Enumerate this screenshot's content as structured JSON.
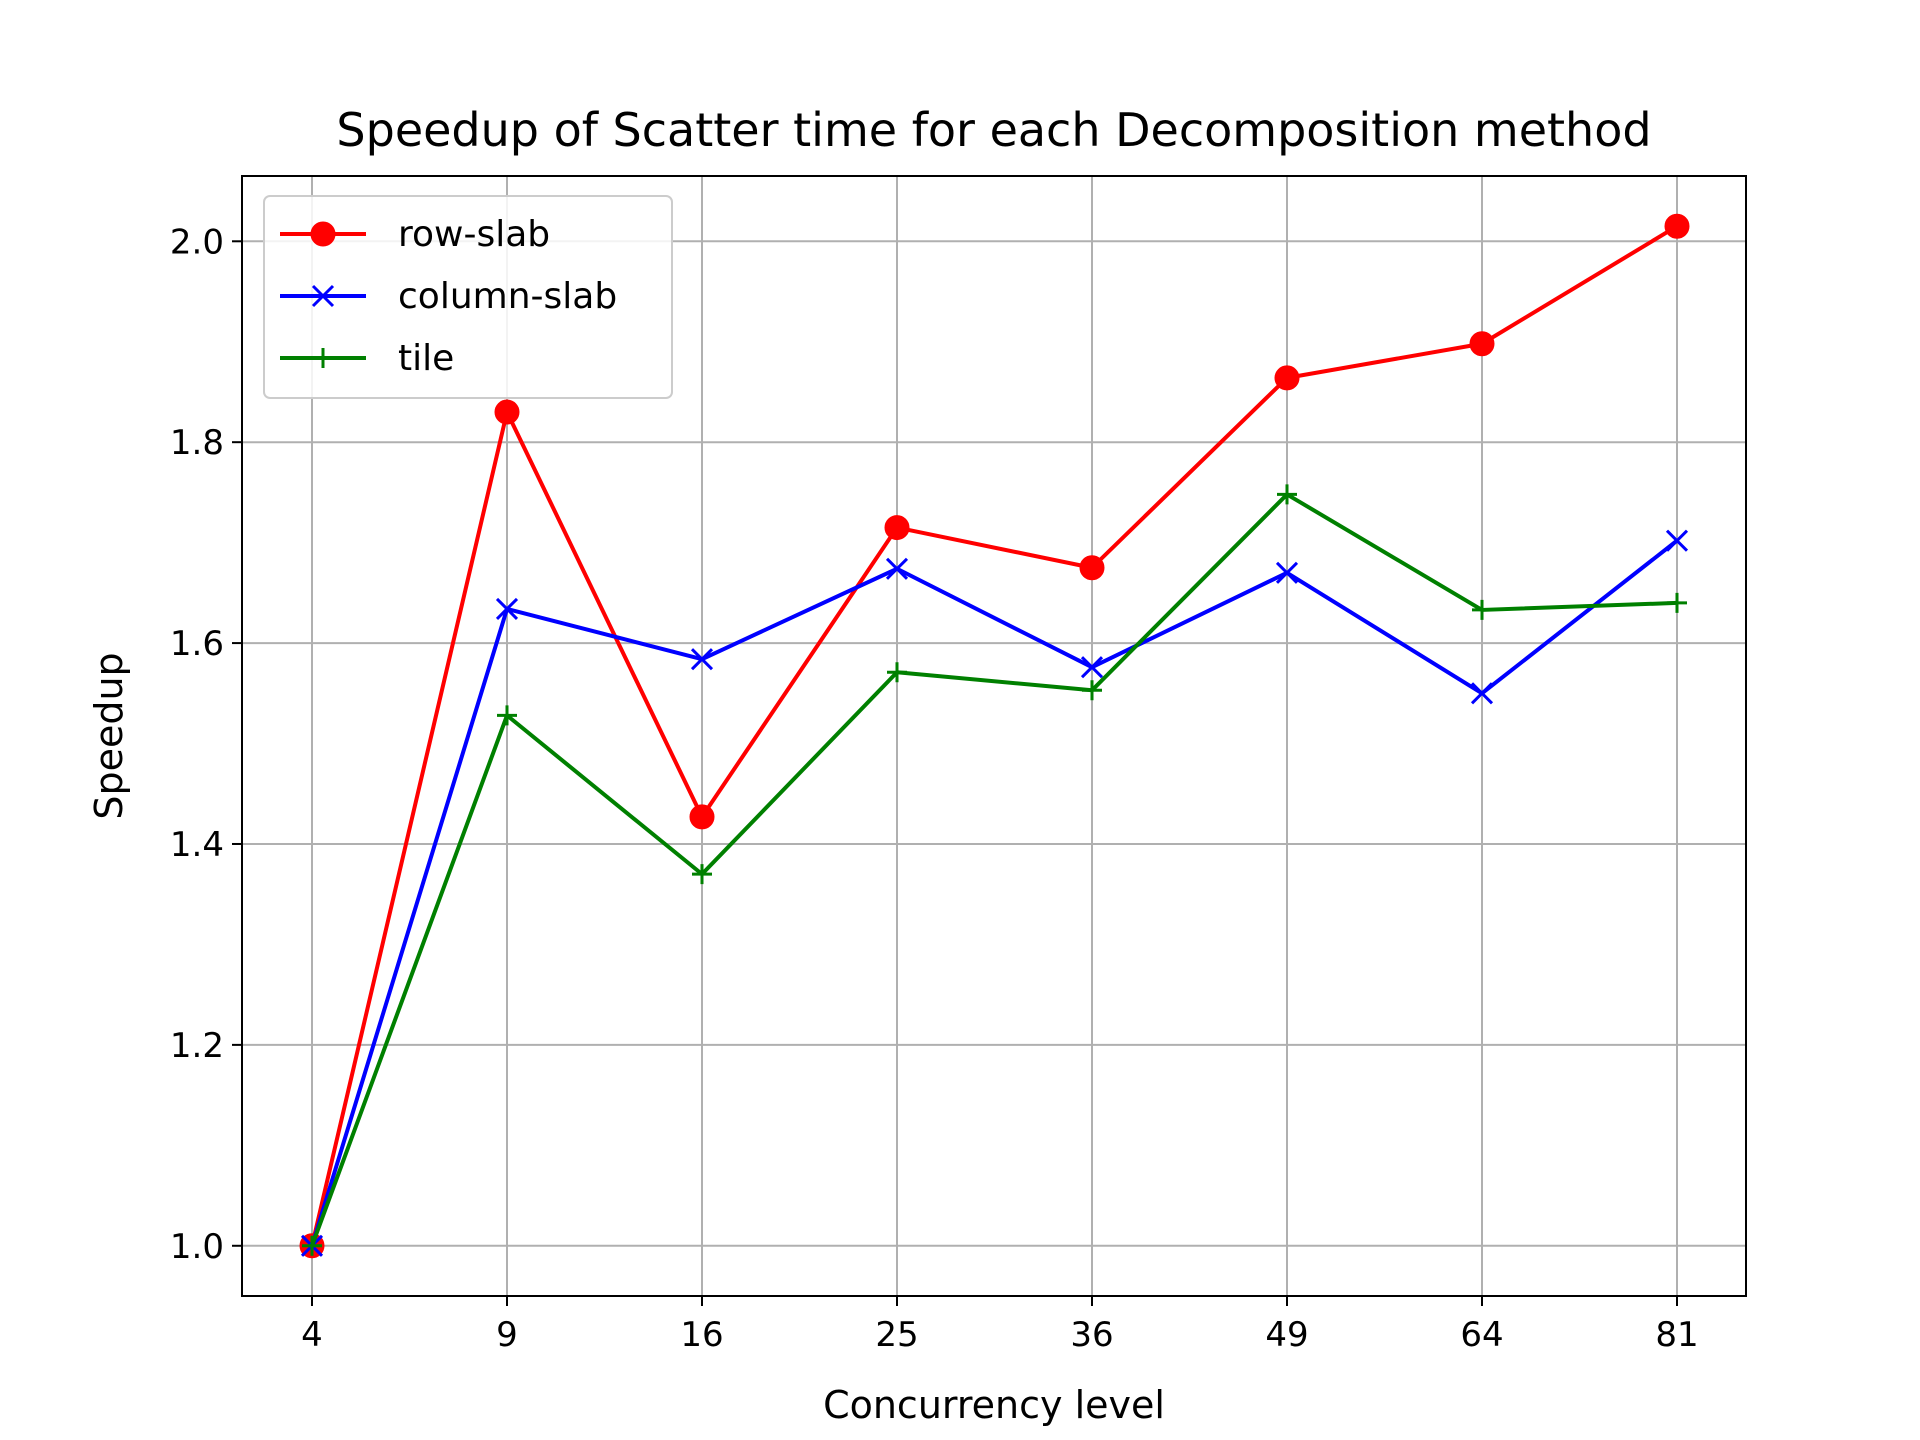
{
  "chart_data": {
    "type": "line",
    "title": "Speedup of Scatter time for each Decomposition method",
    "xlabel": "Concurrency level",
    "ylabel": "Speedup",
    "categories": [
      "4",
      "9",
      "16",
      "25",
      "36",
      "49",
      "64",
      "81"
    ],
    "ylim": [
      0.95,
      2.065
    ],
    "yticks": [
      "1.0",
      "1.2",
      "1.4",
      "1.6",
      "1.8",
      "2.0"
    ],
    "grid": true,
    "legend_position": "top-left",
    "series": [
      {
        "name": "row-slab",
        "color": "#ff0000",
        "marker": "circle",
        "values": [
          1.0,
          1.83,
          1.427,
          1.715,
          1.675,
          1.864,
          1.898,
          2.015
        ]
      },
      {
        "name": "column-slab",
        "color": "#0000ff",
        "marker": "x",
        "values": [
          1.0,
          1.634,
          1.584,
          1.674,
          1.576,
          1.67,
          1.55,
          1.702
        ]
      },
      {
        "name": "tile",
        "color": "#008000",
        "marker": "plus",
        "values": [
          1.0,
          1.528,
          1.37,
          1.571,
          1.553,
          1.748,
          1.633,
          1.64
        ]
      }
    ]
  }
}
